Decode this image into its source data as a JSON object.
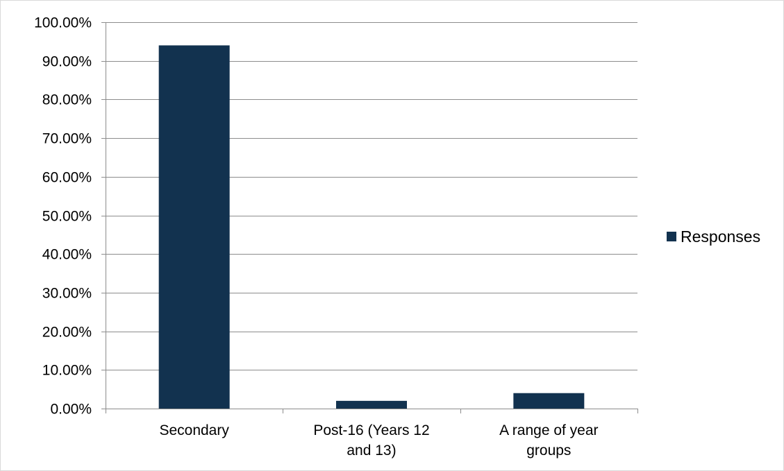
{
  "chart_data": {
    "type": "bar",
    "title": "",
    "xlabel": "",
    "ylabel": "",
    "categories": [
      [
        "Secondary"
      ],
      [
        "Post-16 (Years 12",
        "and 13)"
      ],
      [
        "A range of year",
        "groups"
      ]
    ],
    "series": [
      {
        "name": "Responses",
        "values": [
          94.0,
          2.0,
          4.0
        ],
        "color": "#12324f"
      }
    ],
    "ylim": [
      0,
      100
    ],
    "yticks": [
      0,
      10,
      20,
      30,
      40,
      50,
      60,
      70,
      80,
      90,
      100
    ],
    "ytick_labels": [
      "0.00%",
      "10.00%",
      "20.00%",
      "30.00%",
      "40.00%",
      "50.00%",
      "60.00%",
      "70.00%",
      "80.00%",
      "90.00%",
      "100.00%"
    ],
    "grid": true,
    "legend_position": "right"
  }
}
